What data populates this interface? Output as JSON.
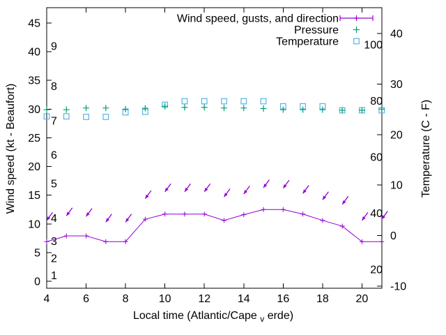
{
  "chart_data": {
    "type": "line",
    "legend": [
      {
        "label": "Wind speed, gusts, and direction",
        "marker": "errorbar-plus",
        "color": "#9400d3"
      },
      {
        "label": "Pressure",
        "marker": "plus",
        "color": "#009e73"
      },
      {
        "label": "Temperature",
        "marker": "open-square",
        "color": "#56b4e9"
      }
    ],
    "xlabel": {
      "pre": "Local time (Atlantic/Cape",
      "sub": "v",
      "post": "erde)"
    },
    "ylabel": "Wind speed (kt - Beaufort)",
    "y2label": "Temperature (C - F)",
    "x_ticks": [
      4,
      6,
      8,
      10,
      12,
      14,
      16,
      18,
      20
    ],
    "left_ticks": [
      0,
      5,
      10,
      15,
      20,
      25,
      30,
      35,
      40,
      45
    ],
    "right_ticks": [
      -10,
      0,
      10,
      20,
      30,
      40
    ],
    "xlim": [
      4,
      21.01
    ],
    "ylim_left": [
      -1.22,
      47.68
    ],
    "ylim_right": [
      -10.41,
      45.11
    ],
    "grid": false,
    "legend_position": "top-right-inside",
    "beaufort_labels": [
      {
        "label": "1",
        "kt": 1
      },
      {
        "label": "2",
        "kt": 4
      },
      {
        "label": "3",
        "kt": 7
      },
      {
        "label": "4",
        "kt": 11
      },
      {
        "label": "5",
        "kt": 17
      },
      {
        "label": "6",
        "kt": 22
      },
      {
        "label": "7",
        "kt": 28
      },
      {
        "label": "8",
        "kt": 34
      },
      {
        "label": "9",
        "kt": 41
      }
    ],
    "fahrenheit_labels": [
      {
        "label": "20",
        "f": 20
      },
      {
        "label": "40",
        "f": 40
      },
      {
        "label": "60",
        "f": 60
      },
      {
        "label": "80",
        "f": 80
      },
      {
        "label": "100",
        "f": 100
      }
    ],
    "x": [
      4,
      5,
      6,
      7,
      8,
      9,
      10,
      11,
      12,
      13,
      14,
      15,
      16,
      17,
      18,
      19,
      20,
      21
    ],
    "series": [
      {
        "name": "Wind speed",
        "axis": "left",
        "style": "line-plus",
        "color": "#9400d3",
        "values": [
          6.9,
          7.9,
          7.9,
          6.9,
          6.9,
          10.8,
          11.7,
          11.7,
          11.7,
          10.6,
          11.6,
          12.5,
          12.5,
          11.7,
          10.6,
          9.6,
          6.9,
          6.9
        ]
      },
      {
        "name": "Wind gusts and direction",
        "axis": "left",
        "style": "arrow",
        "color": "#9400d3",
        "direction": "toward-southwest",
        "values": [
          10.6,
          11.4,
          11.3,
          10.3,
          10.3,
          14.4,
          15.6,
          15.6,
          15.6,
          14.7,
          15.2,
          16.3,
          16.2,
          15.3,
          14.2,
          13.4,
          10.6,
          10.8
        ]
      },
      {
        "name": "Pressure",
        "axis": "left",
        "style": "plus",
        "color": "#009e73",
        "values": [
          29.9,
          29.9,
          30.2,
          30.2,
          30.0,
          30.15,
          30.5,
          30.3,
          30.3,
          30.2,
          30.2,
          30.1,
          29.9,
          29.9,
          29.9,
          29.8,
          29.8,
          30.0
        ]
      },
      {
        "name": "Temperature",
        "axis": "right",
        "style": "open-square",
        "color": "#56b4e9",
        "values": [
          23.6,
          23.6,
          23.5,
          23.5,
          24.4,
          24.5,
          25.9,
          26.6,
          26.6,
          26.6,
          26.6,
          26.6,
          25.6,
          25.6,
          25.6,
          24.8,
          24.8,
          24.8
        ]
      }
    ],
    "colors": {
      "background": "#ffffff",
      "axis": "#000000",
      "wind": "#9400d3",
      "pressure": "#009e73",
      "temperature": "#56b4e9"
    }
  }
}
